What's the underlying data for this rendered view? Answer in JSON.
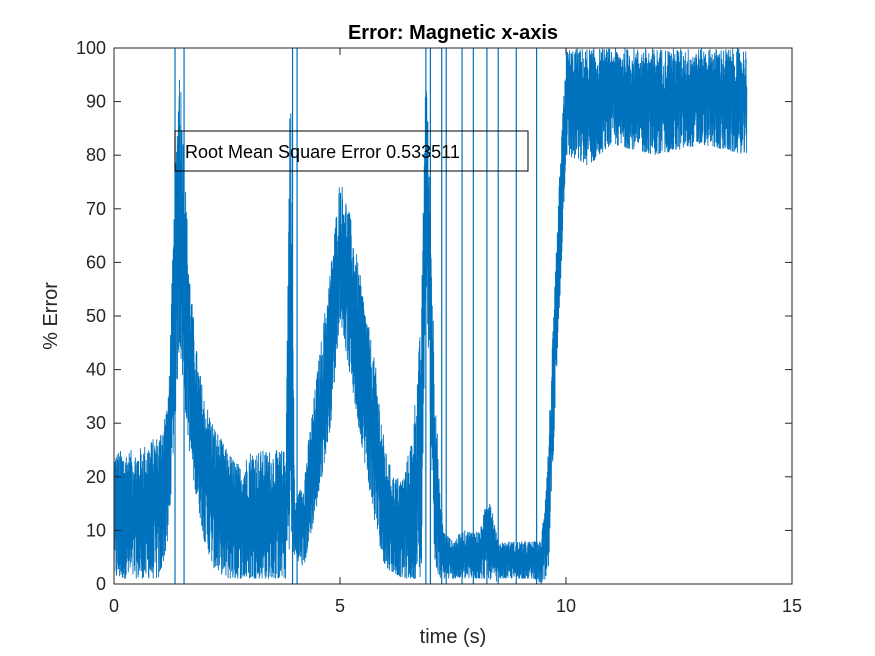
{
  "chart_data": {
    "type": "line",
    "title": "Error: Magnetic x-axis",
    "xlabel": "time (s)",
    "ylabel": "% Error",
    "xlim": [
      0,
      15
    ],
    "ylim": [
      0,
      100
    ],
    "xticks": [
      0,
      5,
      10,
      15
    ],
    "yticks": [
      0,
      10,
      20,
      30,
      40,
      50,
      60,
      70,
      80,
      90,
      100
    ],
    "grid": false,
    "line_color": "#0072BD",
    "annotation": "Root Mean Square Error 0.533511",
    "series": [
      {
        "envelope": {
          "x": [
            0,
            0.5,
            1.0,
            1.2,
            1.35,
            1.45,
            1.55,
            1.7,
            1.85,
            2.0,
            2.2,
            2.5,
            2.8,
            3.0,
            3.3,
            3.6,
            3.8,
            3.9,
            4.0,
            4.2,
            4.5,
            4.8,
            5.0,
            5.2,
            5.5,
            5.8,
            6.0,
            6.2,
            6.4,
            6.6,
            6.8,
            6.9,
            7.1,
            7.2,
            7.3,
            7.5,
            7.7,
            7.9,
            8.1,
            8.3,
            8.45,
            8.5,
            8.7,
            8.9,
            9.1,
            9.3,
            9.45,
            9.6,
            9.7,
            9.85,
            10.0,
            10.5,
            11.0,
            12.0,
            13.0,
            14.0
          ],
          "low": [
            1,
            1,
            1,
            8,
            30,
            45,
            35,
            22,
            15,
            8,
            3,
            1,
            1,
            1,
            1,
            1,
            1,
            8,
            5,
            3,
            15,
            30,
            50,
            40,
            25,
            10,
            3,
            2,
            1,
            1,
            1,
            60,
            2,
            1,
            1,
            1,
            1,
            1,
            1,
            1,
            0,
            1,
            1,
            1,
            1,
            1,
            0,
            0,
            20,
            50,
            80,
            78,
            82,
            80,
            82,
            80
          ],
          "high": [
            25,
            25,
            28,
            35,
            75,
            100,
            80,
            55,
            42,
            35,
            30,
            25,
            22,
            25,
            25,
            25,
            25,
            100,
            15,
            20,
            40,
            60,
            76,
            70,
            55,
            40,
            25,
            20,
            20,
            28,
            50,
            100,
            40,
            18,
            10,
            8,
            10,
            10,
            10,
            18,
            10,
            8,
            8,
            8,
            8,
            8,
            8,
            25,
            45,
            75,
            100,
            100,
            100,
            100,
            100,
            100
          ]
        },
        "spikes": [
          {
            "x": 1.35,
            "y": 100
          },
          {
            "x": 1.55,
            "y": 100
          },
          {
            "x": 3.95,
            "y": 100
          },
          {
            "x": 4.05,
            "y": 100
          },
          {
            "x": 6.9,
            "y": 100
          },
          {
            "x": 7.0,
            "y": 100
          },
          {
            "x": 7.25,
            "y": 100
          },
          {
            "x": 7.35,
            "y": 100
          },
          {
            "x": 7.7,
            "y": 100
          },
          {
            "x": 7.95,
            "y": 100
          },
          {
            "x": 8.25,
            "y": 100
          },
          {
            "x": 8.5,
            "y": 100
          },
          {
            "x": 8.9,
            "y": 100
          },
          {
            "x": 9.35,
            "y": 100
          }
        ]
      }
    ]
  }
}
